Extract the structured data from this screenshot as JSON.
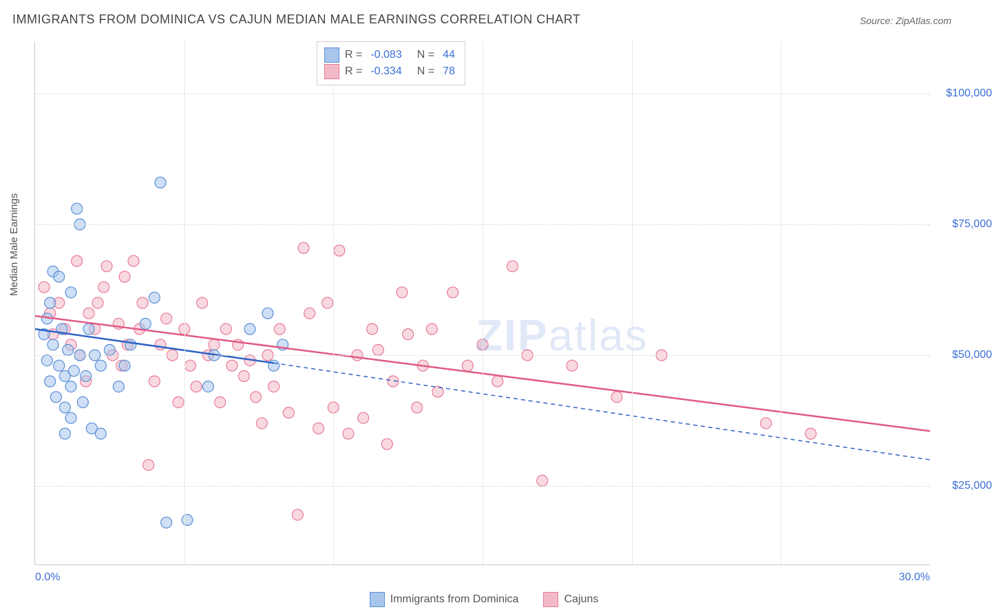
{
  "title": "IMMIGRANTS FROM DOMINICA VS CAJUN MEDIAN MALE EARNINGS CORRELATION CHART",
  "source": "Source: ZipAtlas.com",
  "y_axis_title": "Median Male Earnings",
  "watermark": {
    "part1": "ZIP",
    "part2": "atlas"
  },
  "chart": {
    "type": "scatter",
    "xlim": [
      0,
      30
    ],
    "ylim": [
      10000,
      110000
    ],
    "x_ticks": [
      0,
      30
    ],
    "x_tick_labels": [
      "0.0%",
      "30.0%"
    ],
    "x_minor_ticks": [
      5,
      10,
      15,
      20,
      25
    ],
    "y_ticks": [
      25000,
      50000,
      75000,
      100000
    ],
    "y_tick_labels": [
      "$25,000",
      "$50,000",
      "$75,000",
      "$100,000"
    ],
    "grid_color": "#dcdcdc",
    "background_color": "#ffffff",
    "axis_color": "#c9c9c9",
    "tick_label_color": "#3b6fd6",
    "tick_fontsize": 16,
    "marker_radius": 8,
    "marker_opacity": 0.55,
    "series": [
      {
        "name": "Immigrants from Dominica",
        "short": "dominica",
        "fill_color": "#a8c5ec",
        "stroke_color": "#5a8fd6",
        "line_color": "#2f63c6",
        "R": "-0.083",
        "N": "44",
        "trend": {
          "x1": 0,
          "y1": 55000,
          "x2_solid": 8,
          "y2_solid": 48500,
          "x2": 30,
          "y2": 30000
        },
        "points": [
          [
            0.3,
            54000
          ],
          [
            0.4,
            57000
          ],
          [
            0.4,
            49000
          ],
          [
            0.5,
            60000
          ],
          [
            0.5,
            45000
          ],
          [
            0.6,
            66000
          ],
          [
            0.6,
            52000
          ],
          [
            0.7,
            42000
          ],
          [
            0.8,
            65000
          ],
          [
            0.8,
            48000
          ],
          [
            0.9,
            55000
          ],
          [
            1.0,
            46000
          ],
          [
            1.0,
            40000
          ],
          [
            1.0,
            35000
          ],
          [
            1.1,
            51000
          ],
          [
            1.2,
            62000
          ],
          [
            1.2,
            44000
          ],
          [
            1.2,
            38000
          ],
          [
            1.3,
            47000
          ],
          [
            1.4,
            78000
          ],
          [
            1.5,
            75000
          ],
          [
            1.5,
            50000
          ],
          [
            1.6,
            41000
          ],
          [
            1.7,
            46000
          ],
          [
            1.8,
            55000
          ],
          [
            1.9,
            36000
          ],
          [
            2.0,
            50000
          ],
          [
            2.2,
            48000
          ],
          [
            2.2,
            35000
          ],
          [
            2.5,
            51000
          ],
          [
            2.8,
            44000
          ],
          [
            3.0,
            48000
          ],
          [
            3.2,
            52000
          ],
          [
            3.7,
            56000
          ],
          [
            4.0,
            61000
          ],
          [
            4.2,
            83000
          ],
          [
            4.4,
            18000
          ],
          [
            5.1,
            18500
          ],
          [
            5.8,
            44000
          ],
          [
            6.0,
            50000
          ],
          [
            7.2,
            55000
          ],
          [
            7.8,
            58000
          ],
          [
            8.0,
            48000
          ],
          [
            8.3,
            52000
          ]
        ]
      },
      {
        "name": "Cajuns",
        "short": "cajuns",
        "fill_color": "#f4b9c7",
        "stroke_color": "#e67a99",
        "line_color": "#e15a84",
        "R": "-0.334",
        "N": "78",
        "trend": {
          "x1": 0,
          "y1": 57500,
          "x2_solid": 30,
          "y2_solid": 35500,
          "x2": 30,
          "y2": 35500
        },
        "points": [
          [
            0.3,
            63000
          ],
          [
            0.5,
            58000
          ],
          [
            0.6,
            54000
          ],
          [
            0.8,
            60000
          ],
          [
            1.0,
            55000
          ],
          [
            1.2,
            52000
          ],
          [
            1.4,
            68000
          ],
          [
            1.5,
            50000
          ],
          [
            1.7,
            45000
          ],
          [
            1.8,
            58000
          ],
          [
            2.0,
            55000
          ],
          [
            2.1,
            60000
          ],
          [
            2.3,
            63000
          ],
          [
            2.4,
            67000
          ],
          [
            2.6,
            50000
          ],
          [
            2.8,
            56000
          ],
          [
            2.9,
            48000
          ],
          [
            3.0,
            65000
          ],
          [
            3.1,
            52000
          ],
          [
            3.3,
            68000
          ],
          [
            3.5,
            55000
          ],
          [
            3.6,
            60000
          ],
          [
            3.8,
            29000
          ],
          [
            4.0,
            45000
          ],
          [
            4.2,
            52000
          ],
          [
            4.4,
            57000
          ],
          [
            4.6,
            50000
          ],
          [
            4.8,
            41000
          ],
          [
            5.0,
            55000
          ],
          [
            5.2,
            48000
          ],
          [
            5.4,
            44000
          ],
          [
            5.6,
            60000
          ],
          [
            5.8,
            50000
          ],
          [
            6.0,
            52000
          ],
          [
            6.2,
            41000
          ],
          [
            6.4,
            55000
          ],
          [
            6.6,
            48000
          ],
          [
            6.8,
            52000
          ],
          [
            7.0,
            46000
          ],
          [
            7.2,
            49000
          ],
          [
            7.4,
            42000
          ],
          [
            7.6,
            37000
          ],
          [
            7.8,
            50000
          ],
          [
            8.0,
            44000
          ],
          [
            8.2,
            55000
          ],
          [
            8.5,
            39000
          ],
          [
            8.8,
            19500
          ],
          [
            9.0,
            70500
          ],
          [
            9.2,
            58000
          ],
          [
            9.5,
            36000
          ],
          [
            9.8,
            60000
          ],
          [
            10.0,
            40000
          ],
          [
            10.2,
            70000
          ],
          [
            10.5,
            35000
          ],
          [
            10.8,
            50000
          ],
          [
            11.0,
            38000
          ],
          [
            11.3,
            55000
          ],
          [
            11.5,
            51000
          ],
          [
            11.8,
            33000
          ],
          [
            12.0,
            45000
          ],
          [
            12.3,
            62000
          ],
          [
            12.5,
            54000
          ],
          [
            12.8,
            40000
          ],
          [
            13.0,
            48000
          ],
          [
            13.3,
            55000
          ],
          [
            13.5,
            43000
          ],
          [
            14.0,
            62000
          ],
          [
            14.5,
            48000
          ],
          [
            15.0,
            52000
          ],
          [
            15.5,
            45000
          ],
          [
            16.0,
            67000
          ],
          [
            16.5,
            50000
          ],
          [
            17.0,
            26000
          ],
          [
            18.0,
            48000
          ],
          [
            19.5,
            42000
          ],
          [
            21.0,
            50000
          ],
          [
            24.5,
            37000
          ],
          [
            26.0,
            35000
          ]
        ]
      }
    ]
  },
  "bottom_legend": [
    {
      "label": "Immigrants from Dominica",
      "fill": "#a8c5ec",
      "stroke": "#5a8fd6"
    },
    {
      "label": "Cajuns",
      "fill": "#f4b9c7",
      "stroke": "#e67a99"
    }
  ]
}
